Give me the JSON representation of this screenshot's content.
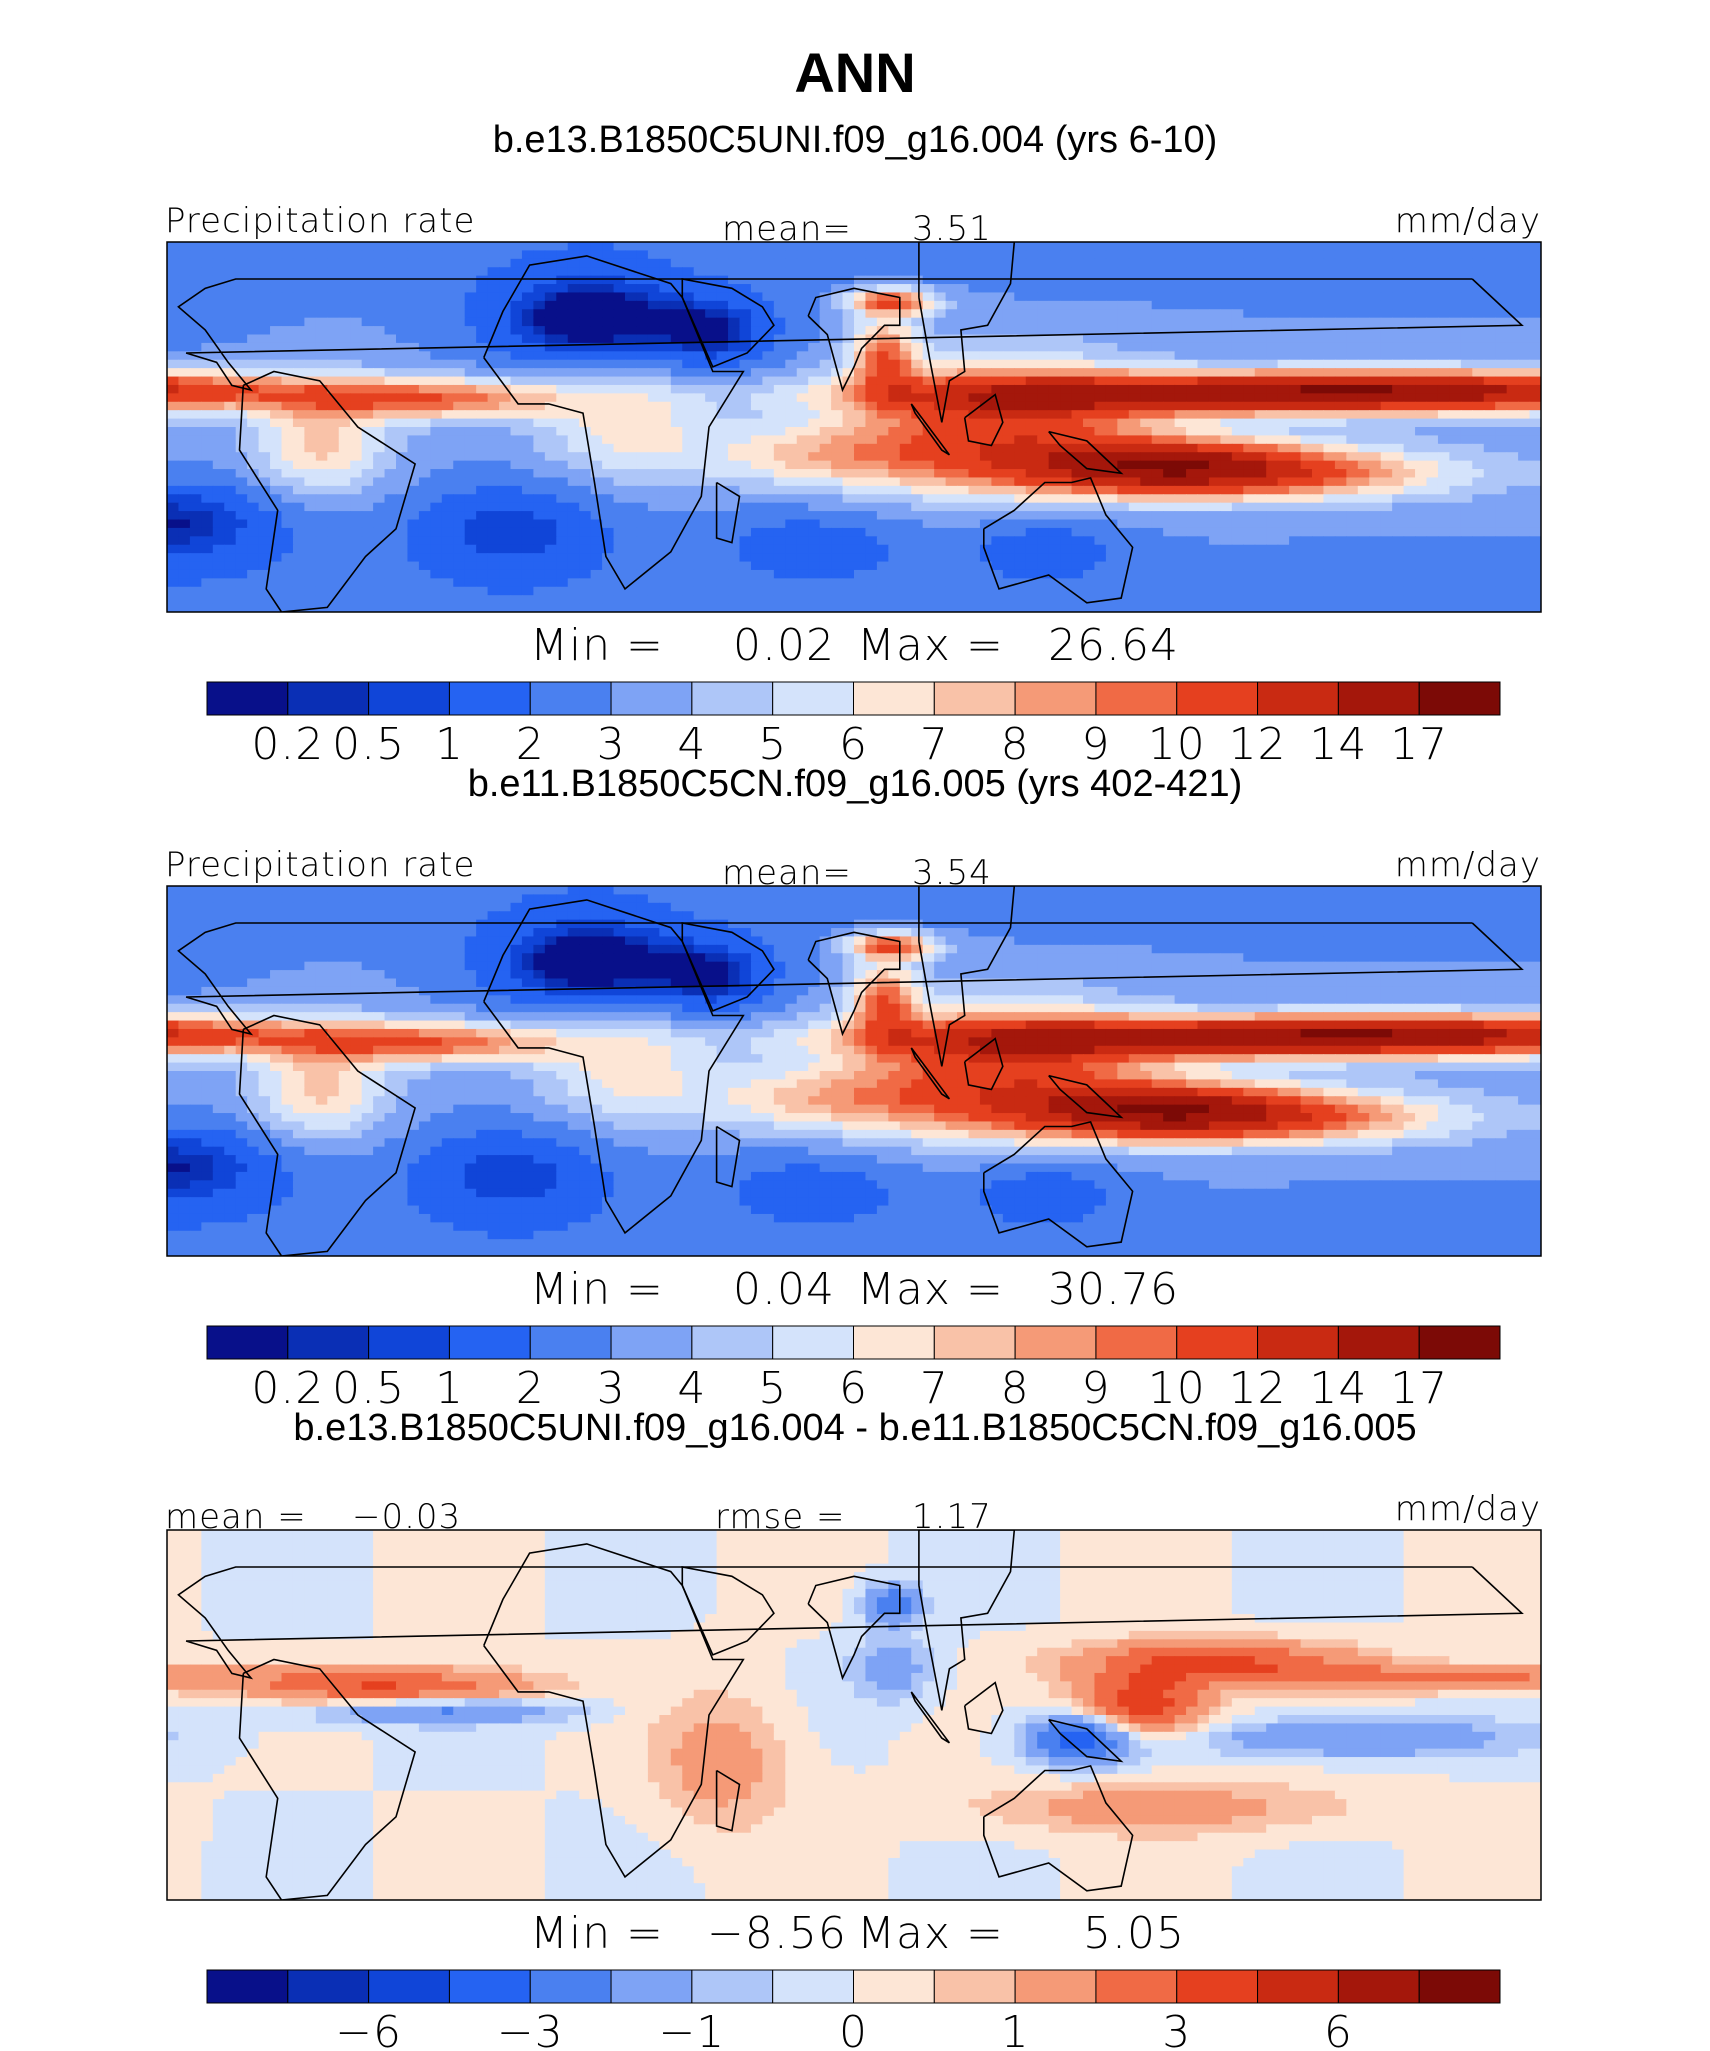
{
  "title": "ANN",
  "colors": {
    "land_outline": "#000000",
    "abs_scale": [
      "#08108a",
      "#0a2fb5",
      "#1045d8",
      "#2563f2",
      "#4a80f0",
      "#7ea3f5",
      "#aec6f8",
      "#d4e3fb",
      "#fde6d6",
      "#f9c2a8",
      "#f59a77",
      "#f06a45",
      "#e5401f",
      "#c92a12",
      "#a4170b",
      "#7c0a06"
    ],
    "diff_scale": [
      "#08108a",
      "#0a2fb5",
      "#1045d8",
      "#2563f2",
      "#4a80f0",
      "#7ea3f5",
      "#aec6f8",
      "#d4e3fb",
      "#fde6d6",
      "#f9c2a8",
      "#f59a77",
      "#f06a45",
      "#e5401f",
      "#c92a12",
      "#a4170b",
      "#7c0a06"
    ]
  },
  "chart_data": [
    {
      "type": "heatmap",
      "case": "b.e13.B1850C5UNI.f09_g16.004 (yrs 6-10)",
      "variable": "Precipitation rate",
      "units": "mm/day",
      "mean_label": "mean=",
      "mean_value": "3.51",
      "min_label": "Min =",
      "min_value": "0.02",
      "max_label": "Max =",
      "max_value": "26.64",
      "levels": [
        "0.2",
        "0.5",
        "1",
        "2",
        "3",
        "4",
        "5",
        "6",
        "7",
        "8",
        "9",
        "10",
        "12",
        "14",
        "17"
      ],
      "field": "abs"
    },
    {
      "type": "heatmap",
      "case": "b.e11.B1850C5CN.f09_g16.005 (yrs 402-421)",
      "variable": "Precipitation rate",
      "units": "mm/day",
      "mean_label": "mean=",
      "mean_value": "3.54",
      "min_label": "Min =",
      "min_value": "0.04",
      "max_label": "Max =",
      "max_value": "30.76",
      "levels": [
        "0.2",
        "0.5",
        "1",
        "2",
        "3",
        "4",
        "5",
        "6",
        "7",
        "8",
        "9",
        "10",
        "12",
        "14",
        "17"
      ],
      "field": "abs"
    },
    {
      "type": "heatmap",
      "case": "b.e13.B1850C5UNI.f09_g16.004 - b.e11.B1850C5CN.f09_g16.005",
      "units": "mm/day",
      "mean_label": "mean =",
      "mean_value": "−0.03",
      "rmse_label": "rmse =",
      "rmse_value": "1.17",
      "min_label": "Min =",
      "min_value": "−8.56",
      "max_label": "Max =",
      "max_value": "5.05",
      "level_values": [
        -8,
        -6,
        -4,
        -3,
        -2,
        -1,
        -0.5,
        0,
        0.5,
        1,
        2,
        3,
        4,
        6,
        8
      ],
      "tick_labels": [
        {
          "i": 1,
          "t": "−6"
        },
        {
          "i": 3,
          "t": "−3"
        },
        {
          "i": 5,
          "t": "−1"
        },
        {
          "i": 7,
          "t": "0"
        },
        {
          "i": 9,
          "t": "1"
        },
        {
          "i": 11,
          "t": "3"
        },
        {
          "i": 13,
          "t": "6"
        }
      ],
      "field": "diff"
    }
  ]
}
